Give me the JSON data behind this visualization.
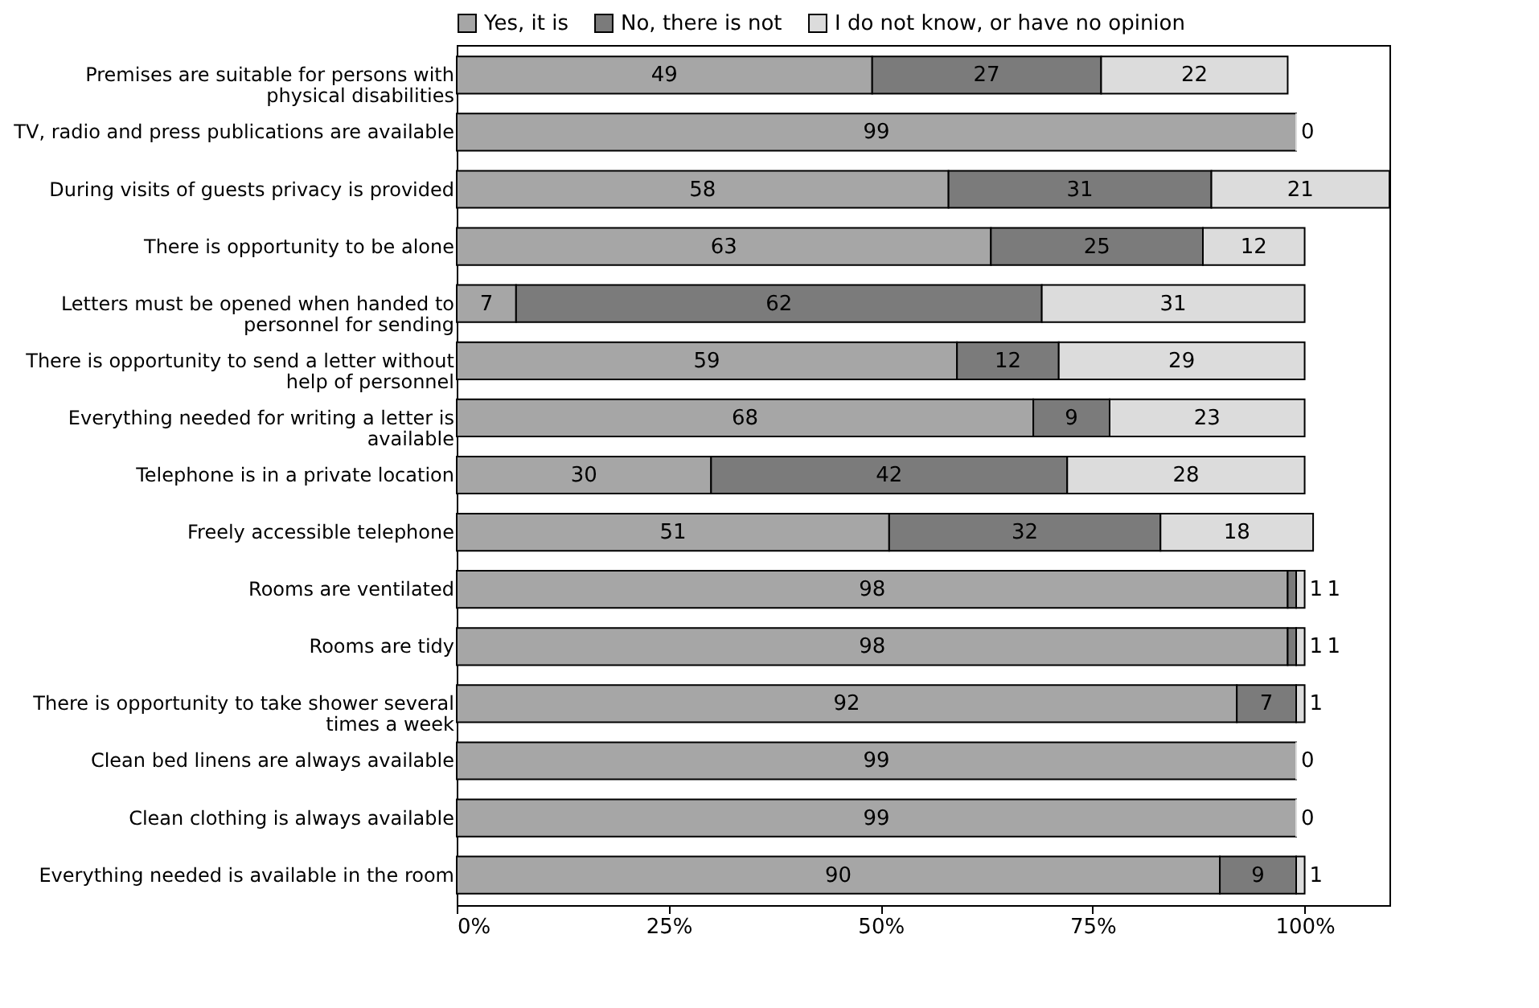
{
  "chart_data": {
    "type": "bar",
    "orientation": "horizontal",
    "stacked": true,
    "legend": "top",
    "grid": false,
    "categories": [
      "Premises are suitable for persons with physical disabilities",
      "TV, radio and press publications are available",
      "During visits of guests privacy is provided",
      "There is opportunity to be alone",
      "Letters must be opened when handed to personnel for sending",
      "There is opportunity to send a letter without help of personnel",
      "Everything needed for writing a letter is available",
      "Telephone is in a private location",
      "Freely accessible telephone",
      "Rooms are ventilated",
      "Rooms are tidy",
      "There is opportunity to take shower several times a week",
      "Clean bed linens are always available",
      "Clean clothing is always available",
      "Everything needed is available in the room"
    ],
    "series": [
      {
        "name": "Yes, it is",
        "color": "#a6a6a6",
        "values": [
          49,
          99,
          58,
          63,
          7,
          59,
          68,
          30,
          51,
          98,
          98,
          92,
          99,
          99,
          90
        ],
        "value_labels": [
          "49",
          "99",
          "58",
          "63",
          "7",
          "59",
          "68",
          "30",
          "51",
          "98",
          "98",
          "92",
          "99",
          "99",
          "90"
        ]
      },
      {
        "name": "No, there is not",
        "color": "#7b7b7b",
        "values": [
          27,
          0,
          31,
          25,
          62,
          12,
          9,
          42,
          32,
          1,
          1,
          7,
          0,
          0,
          9
        ],
        "value_labels": [
          "27",
          null,
          "31",
          "25",
          "62",
          "12",
          "9",
          "42",
          "32",
          "1",
          "1",
          "7",
          null,
          null,
          "9"
        ]
      },
      {
        "name": "I do not know, or have no opinion",
        "color": "#dcdcdc",
        "values": [
          22,
          0,
          21,
          12,
          31,
          29,
          23,
          28,
          18,
          1,
          1,
          1,
          0,
          0,
          1
        ],
        "value_labels": [
          "22",
          "0",
          "21",
          "12",
          "31",
          "29",
          "23",
          "28",
          "18",
          "1",
          "1",
          "1",
          "0",
          "0",
          "1"
        ]
      }
    ],
    "xlim": [
      0,
      110
    ],
    "xticks": [
      {
        "value": 0,
        "label": "0%"
      },
      {
        "value": 25,
        "label": "25%"
      },
      {
        "value": 50,
        "label": "50%"
      },
      {
        "value": 75,
        "label": "75%"
      },
      {
        "value": 100,
        "label": "100%"
      }
    ]
  }
}
